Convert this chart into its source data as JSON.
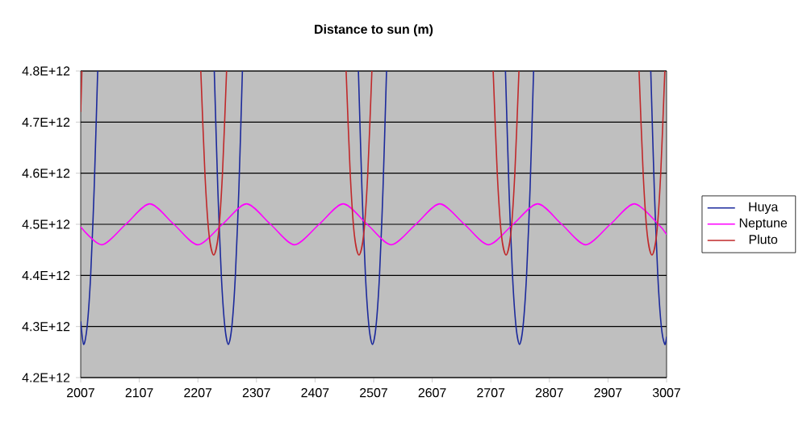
{
  "chart_data": {
    "type": "line",
    "title": "Distance to sun (m)",
    "xlim": [
      2007,
      3007
    ],
    "xticks": [
      2007,
      2107,
      2207,
      2307,
      2407,
      2507,
      2607,
      2707,
      2807,
      2907,
      3007
    ],
    "ylim": [
      4200000000000.0,
      4800000000000.0
    ],
    "yticks": [
      {
        "value": 4200000000000.0,
        "label": "4.2E+12"
      },
      {
        "value": 4300000000000.0,
        "label": "4.3E+12"
      },
      {
        "value": 4400000000000.0,
        "label": "4.4E+12"
      },
      {
        "value": 4500000000000.0,
        "label": "4.5E+12"
      },
      {
        "value": 4600000000000.0,
        "label": "4.6E+12"
      },
      {
        "value": 4700000000000.0,
        "label": "4.7E+12"
      },
      {
        "value": 4800000000000.0,
        "label": "4.8E+12"
      }
    ],
    "grid": "y",
    "legend": "right",
    "series": [
      {
        "name": "Huya",
        "color": "#1c2a9c",
        "x": [
          2007,
          2012,
          2018,
          2024,
          2030,
          2036,
          2040,
          2235,
          2241,
          2247,
          2253,
          2259,
          2265,
          2271,
          2277,
          2283,
          2290,
          2481,
          2487,
          2493,
          2499,
          2505,
          2511,
          2517,
          2523,
          2529,
          2535,
          2732,
          2738,
          2744,
          2750,
          2756,
          2762,
          2768,
          2774,
          2780,
          2785,
          2980,
          2986,
          2992,
          2998,
          3004,
          3007
        ],
        "values": [
          4310000000000.0,
          4265000000000.0,
          4300000000000.0,
          4400000000000.0,
          4570000000000.0,
          4800000000000.0,
          null,
          4800000000000.0,
          4570000000000.0,
          4400000000000.0,
          4300000000000.0,
          4265000000000.0,
          4300000000000.0,
          4400000000000.0,
          4570000000000.0,
          4800000000000.0,
          null,
          4800000000000.0,
          4570000000000.0,
          4400000000000.0,
          4300000000000.0,
          4265000000000.0,
          4300000000000.0,
          4400000000000.0,
          4570000000000.0,
          4800000000000.0,
          null,
          4800000000000.0,
          4570000000000.0,
          4400000000000.0,
          4300000000000.0,
          4265000000000.0,
          4300000000000.0,
          4400000000000.0,
          4570000000000.0,
          4800000000000.0,
          null,
          4800000000000.0,
          4570000000000.0,
          4400000000000.0,
          4300000000000.0,
          4265000000000.0,
          4280000000000.0
        ]
      },
      {
        "name": "Neptune",
        "color": "#ff00ff",
        "x": [
          2007,
          2043,
          2084,
          2125,
          2166,
          2207,
          2249,
          2290,
          2331,
          2372,
          2414,
          2455,
          2496,
          2537,
          2579,
          2620,
          2662,
          2703,
          2745,
          2787,
          2828,
          2869,
          2911,
          2952,
          2993,
          3007
        ],
        "values": [
          4495000000000.0,
          4460000000000.0,
          4500000000000.0,
          4540000000000.0,
          4500000000000.0,
          4460000000000.0,
          4500000000000.0,
          4540000000000.0,
          4500000000000.0,
          4460000000000.0,
          4500000000000.0,
          4540000000000.0,
          4500000000000.0,
          4460000000000.0,
          4500000000000.0,
          4540000000000.0,
          4500000000000.0,
          4460000000000.0,
          4500000000000.0,
          4540000000000.0,
          4500000000000.0,
          4460000000000.0,
          4500000000000.0,
          4540000000000.0,
          4500000000000.0,
          4480000000000.0
        ]
      },
      {
        "name": "Pluto",
        "color": "#c0282a",
        "x": [
          2007,
          2009,
          2100,
          2212,
          2219,
          2226,
          2234,
          2242,
          2249,
          2256,
          2300,
          2460,
          2467,
          2474,
          2482,
          2490,
          2497,
          2504,
          2600,
          2711,
          2718,
          2725,
          2733,
          2741,
          2748,
          2755,
          2900,
          2960,
          2967,
          2974,
          2982,
          2990,
          2997,
          3004
        ],
        "values": [
          4720000000000.0,
          4800000000000.0,
          null,
          4800000000000.0,
          4600000000000.0,
          4480000000000.0,
          4440000000000.0,
          4480000000000.0,
          4600000000000.0,
          4800000000000.0,
          null,
          4800000000000.0,
          4600000000000.0,
          4480000000000.0,
          4440000000000.0,
          4480000000000.0,
          4600000000000.0,
          4800000000000.0,
          null,
          4800000000000.0,
          4600000000000.0,
          4480000000000.0,
          4440000000000.0,
          4480000000000.0,
          4600000000000.0,
          4800000000000.0,
          null,
          4800000000000.0,
          4600000000000.0,
          4480000000000.0,
          4440000000000.0,
          4480000000000.0,
          4600000000000.0,
          4800000000000.0
        ]
      }
    ]
  }
}
